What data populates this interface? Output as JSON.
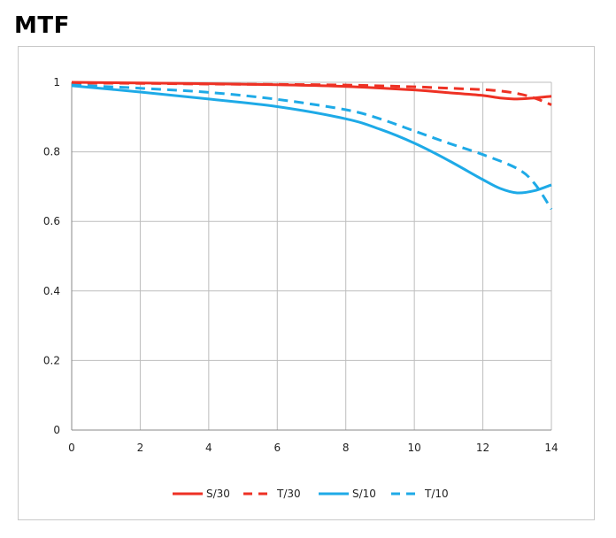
{
  "title": "MTF",
  "chart_data": {
    "type": "line",
    "xlim": [
      0,
      14
    ],
    "ylim": [
      0,
      1
    ],
    "xticks": [
      0,
      2,
      4,
      6,
      8,
      10,
      12,
      14
    ],
    "yticks": [
      0,
      0.2,
      0.4,
      0.6,
      0.8,
      1
    ],
    "ytick_labels": [
      "0",
      "0.2",
      "0.4",
      "0.6",
      "0.8",
      "1"
    ],
    "grid": true,
    "legend_position": "bottom",
    "series": [
      {
        "name": "S/30",
        "color": "#ee3124",
        "style": "solid",
        "x": [
          0,
          2,
          4,
          6,
          8,
          10,
          11,
          12,
          12.5,
          13,
          13.5,
          14
        ],
        "y": [
          1.0,
          0.998,
          0.996,
          0.993,
          0.988,
          0.978,
          0.97,
          0.962,
          0.955,
          0.952,
          0.955,
          0.96
        ]
      },
      {
        "name": "T/30",
        "color": "#ee3124",
        "style": "dashed",
        "x": [
          0,
          2,
          4,
          6,
          8,
          10,
          11,
          12,
          12.5,
          13,
          13.5,
          14
        ],
        "y": [
          0.998,
          0.997,
          0.995,
          0.994,
          0.992,
          0.987,
          0.983,
          0.979,
          0.975,
          0.968,
          0.955,
          0.935
        ]
      },
      {
        "name": "S/10",
        "color": "#1eaae7",
        "style": "solid",
        "x": [
          0,
          2,
          4,
          6,
          8,
          9,
          10,
          11,
          12,
          12.5,
          13,
          13.5,
          14
        ],
        "y": [
          0.99,
          0.972,
          0.952,
          0.93,
          0.895,
          0.865,
          0.825,
          0.775,
          0.72,
          0.695,
          0.682,
          0.688,
          0.705
        ]
      },
      {
        "name": "T/10",
        "color": "#1eaae7",
        "style": "dashed",
        "x": [
          0,
          2,
          4,
          6,
          8,
          9,
          10,
          11,
          12,
          13,
          13.5,
          14
        ],
        "y": [
          0.992,
          0.983,
          0.971,
          0.951,
          0.921,
          0.895,
          0.86,
          0.825,
          0.792,
          0.752,
          0.71,
          0.635
        ]
      }
    ]
  }
}
